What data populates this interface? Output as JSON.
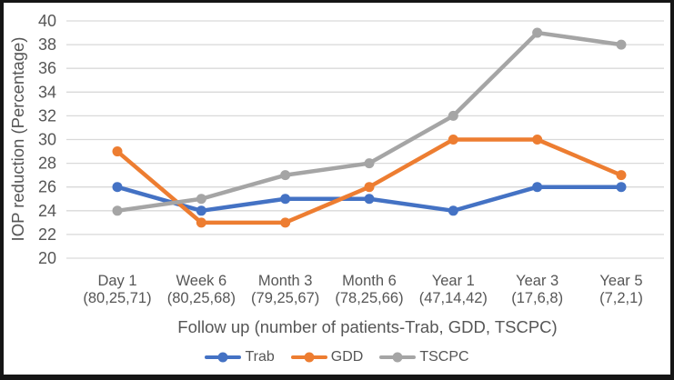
{
  "frame": {
    "border_color": "#151515",
    "background": "#ffffff"
  },
  "colors": {
    "grid": "#d9d9d9",
    "text": "#565656"
  },
  "chart_data": {
    "type": "line",
    "title": "",
    "xlabel": "Follow up (number of patients-Trab, GDD, TSCPC)",
    "ylabel": "IOP reduction (Percentage)",
    "ylim": [
      20,
      40
    ],
    "ytick_step": 2,
    "grid": true,
    "legend_position": "bottom",
    "marker": "circle",
    "categories": [
      "Day 1",
      "Week 6",
      "Month 3",
      "Month 6",
      "Year 1",
      "Year 3",
      "Year 5"
    ],
    "category_sublabels": [
      "(80,25,71)",
      "(80,25,68)",
      "(79,25,67)",
      "(78,25,66)",
      "(47,14,42)",
      "(17,6,8)",
      "(7,2,1)"
    ],
    "series": [
      {
        "name": "Trab",
        "color": "#4472C4",
        "values": [
          26,
          24,
          25,
          25,
          24,
          26,
          26
        ]
      },
      {
        "name": "GDD",
        "color": "#ED7D31",
        "values": [
          29,
          23,
          23,
          26,
          30,
          30,
          27
        ]
      },
      {
        "name": "TSCPC",
        "color": "#A5A5A5",
        "values": [
          24,
          25,
          27,
          28,
          32,
          39,
          38
        ]
      }
    ]
  }
}
